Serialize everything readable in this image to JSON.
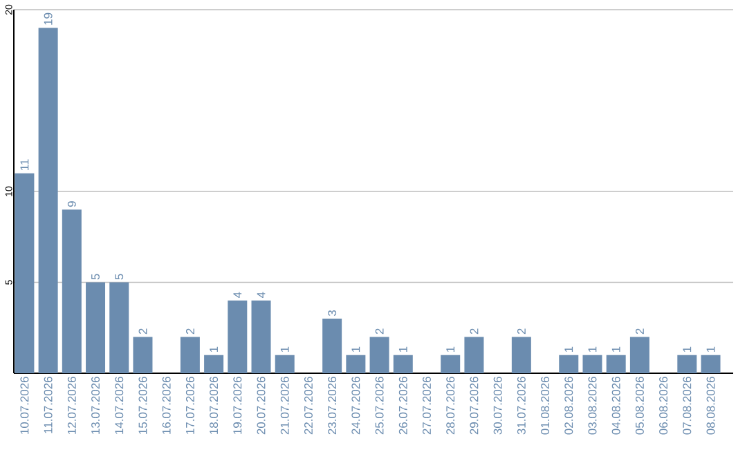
{
  "chart_data": {
    "type": "bar",
    "categories": [
      "10.07.2026",
      "11.07.2026",
      "12.07.2026",
      "13.07.2026",
      "14.07.2026",
      "15.07.2026",
      "16.07.2026",
      "17.07.2026",
      "18.07.2026",
      "19.07.2026",
      "20.07.2026",
      "21.07.2026",
      "22.07.2026",
      "23.07.2026",
      "24.07.2026",
      "25.07.2026",
      "26.07.2026",
      "27.07.2026",
      "28.07.2026",
      "29.07.2026",
      "30.07.2026",
      "31.07.2026",
      "01.08.2026",
      "02.08.2026",
      "03.08.2026",
      "04.08.2026",
      "05.08.2026",
      "06.08.2026",
      "07.08.2026",
      "08.08.2026"
    ],
    "values": [
      11,
      19,
      9,
      5,
      5,
      2,
      0,
      2,
      1,
      4,
      4,
      1,
      0,
      3,
      1,
      2,
      1,
      0,
      1,
      2,
      0,
      2,
      0,
      1,
      1,
      1,
      2,
      0,
      1,
      1
    ],
    "value_labels": [
      "11",
      "19",
      "9",
      "5",
      "5",
      "2",
      null,
      "2",
      "1",
      "4",
      "4",
      "1",
      null,
      "3",
      "1",
      "2",
      "1",
      null,
      "1",
      "2",
      null,
      "2",
      null,
      "1",
      "1",
      "1",
      "2",
      null,
      "1",
      "1"
    ],
    "color": "#6b8caf",
    "ylim": [
      0,
      20
    ],
    "yticks": [
      5,
      10,
      20
    ],
    "grid": "y"
  }
}
